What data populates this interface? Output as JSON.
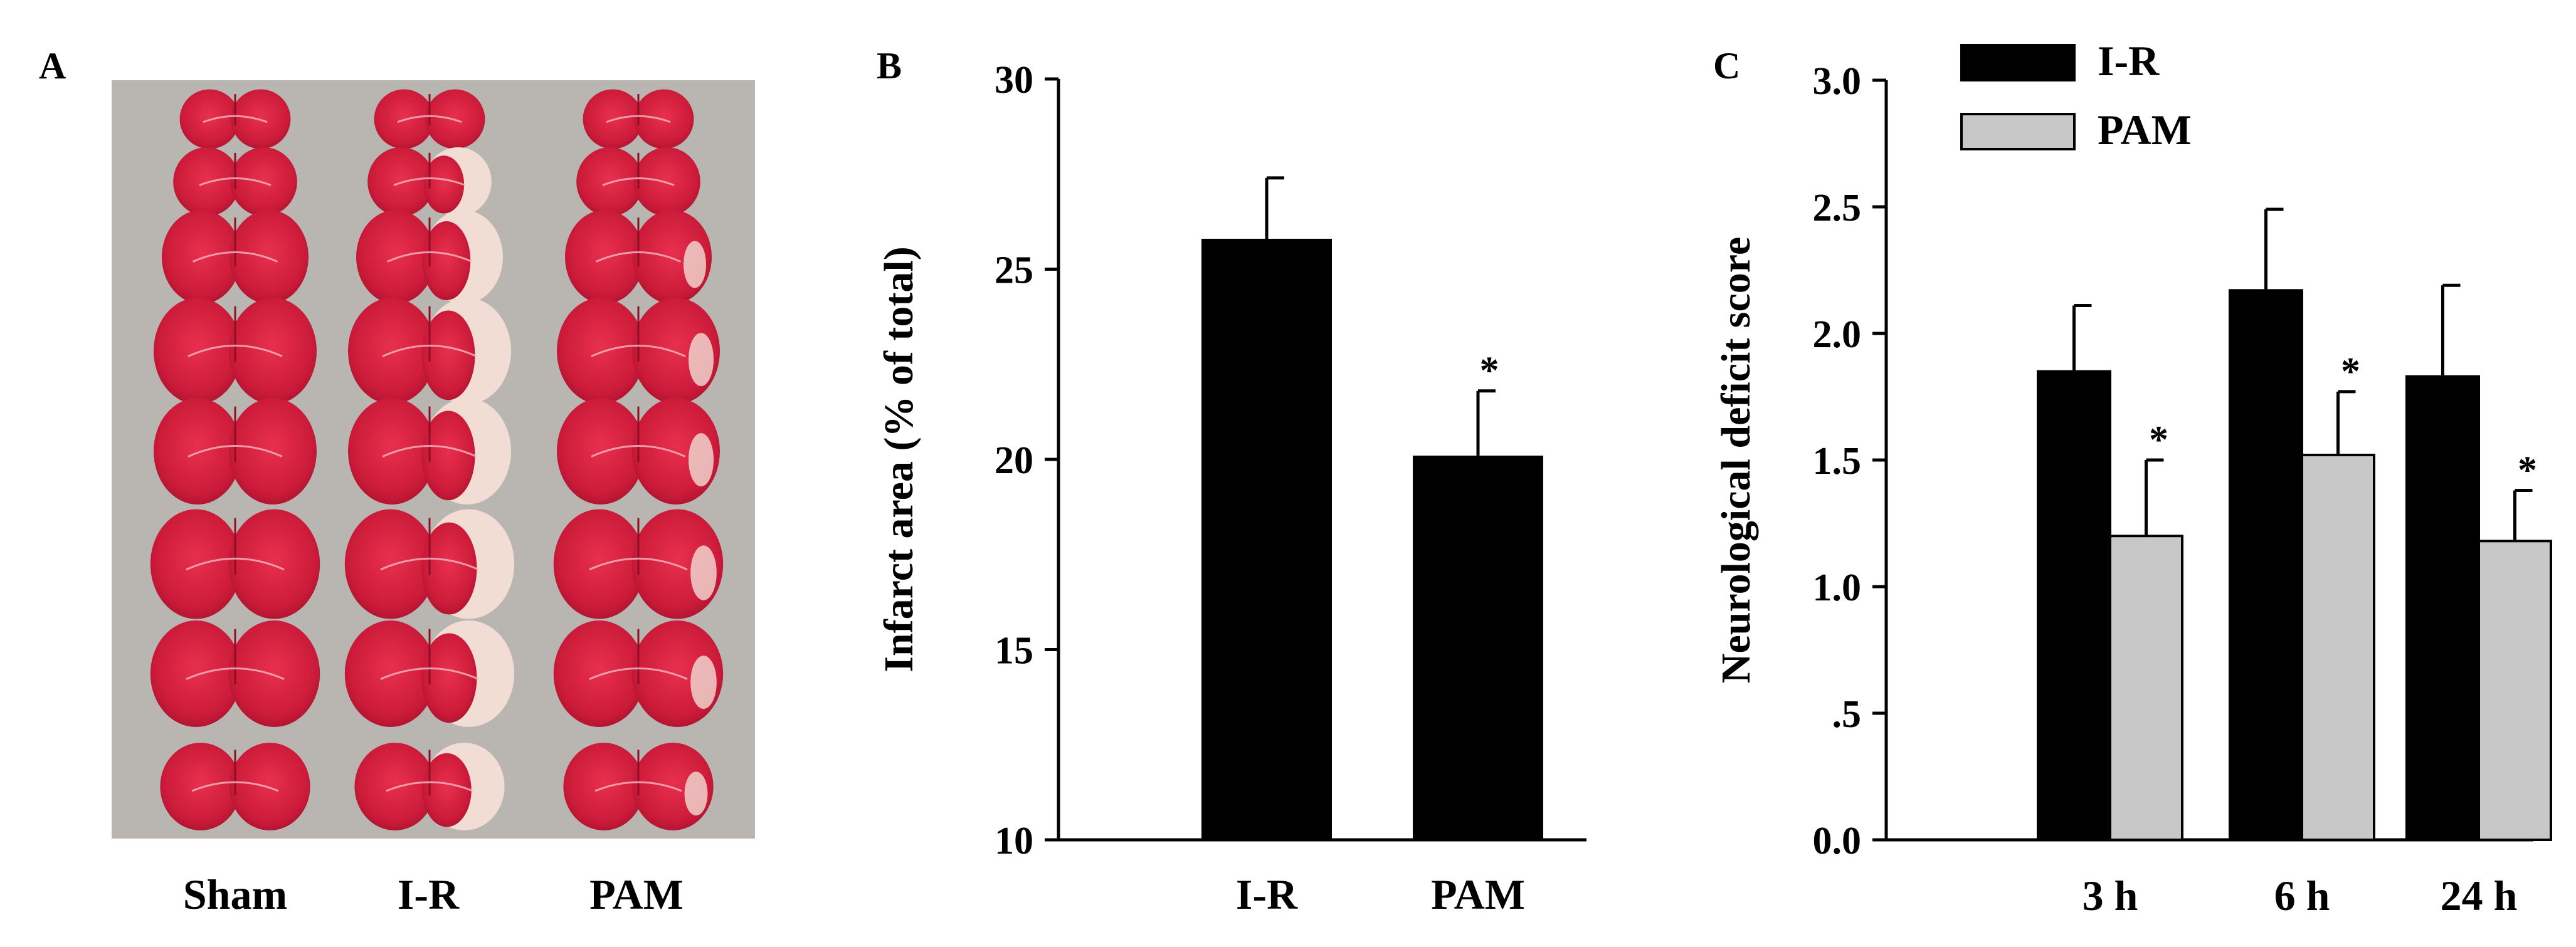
{
  "colors": {
    "ir": "#000000",
    "pam": "#c8c8c8",
    "tissue_red": "#d01e3c",
    "tissue_pale": "#f1ddd4",
    "photo_bg": "#b9b6b2"
  },
  "panels": {
    "a": {
      "letter": "A",
      "group_labels": [
        "Sham",
        "I-R",
        "PAM"
      ]
    },
    "b": {
      "letter": "B"
    },
    "c": {
      "letter": "C"
    }
  },
  "chart_data": [
    {
      "panel": "B",
      "type": "bar",
      "categories": [
        "I-R",
        "PAM"
      ],
      "values": [
        25.8,
        20.1
      ],
      "errors": [
        1.6,
        1.7
      ],
      "significance": [
        "",
        "*"
      ],
      "ylabel": "Infarct area (% of total)",
      "xlabel": "",
      "ylim": [
        10,
        30
      ],
      "yticks": [
        "10",
        "15",
        "20",
        "25",
        "30"
      ],
      "grid": false
    },
    {
      "panel": "C",
      "type": "bar",
      "categories": [
        "3 h",
        "6 h",
        "24 h"
      ],
      "series": [
        {
          "name": "I-R",
          "values": [
            1.85,
            2.17,
            1.83
          ],
          "errors": [
            0.26,
            0.32,
            0.36
          ],
          "significance": [
            "",
            "",
            ""
          ]
        },
        {
          "name": "PAM",
          "values": [
            1.2,
            1.52,
            1.18
          ],
          "errors": [
            0.3,
            0.25,
            0.2
          ],
          "significance": [
            "*",
            "*",
            "*"
          ]
        }
      ],
      "ylabel": "Neurological deficit score",
      "xlabel": "",
      "ylim": [
        0,
        3
      ],
      "yticks": [
        "0.0",
        ".5",
        "1.0",
        "1.5",
        "2.0",
        "2.5",
        "3.0"
      ],
      "legend": "top-left",
      "grid": false
    }
  ]
}
